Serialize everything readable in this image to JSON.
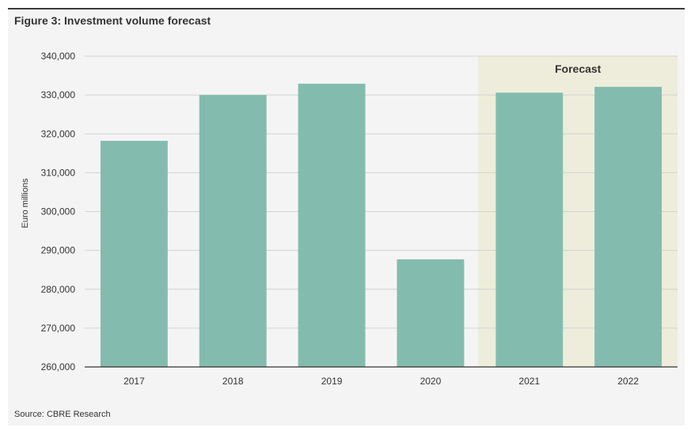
{
  "source": "Source: CBRE Research",
  "colors": {
    "panel": "#f4f4f4",
    "bar": "#83bcae",
    "forecast_band": "#eeeddb",
    "grid": "#d2d2d2",
    "axis": "#333333",
    "text": "#333333"
  },
  "chart_data": {
    "type": "bar",
    "title": "Figure 3: Investment volume forecast",
    "xlabel": "",
    "ylabel": "Euro millions",
    "categories": [
      "2017",
      "2018",
      "2019",
      "2020",
      "2021",
      "2022"
    ],
    "values": [
      318200,
      330000,
      332900,
      287700,
      330600,
      332100
    ],
    "ylim": [
      260000,
      340000
    ],
    "yticks": [
      "260,000",
      "270,000",
      "280,000",
      "290,000",
      "300,000",
      "310,000",
      "320,000",
      "330,000",
      "340,000"
    ],
    "grid": true,
    "legend": "none",
    "annotations": [
      {
        "label": "Forecast",
        "from": "2021",
        "to": "2022"
      }
    ]
  }
}
